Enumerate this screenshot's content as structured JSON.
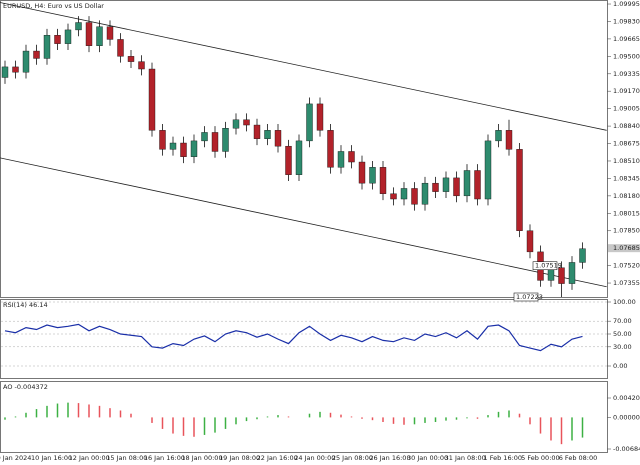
{
  "chart_data": {
    "type": "candlestick",
    "title": "EURUSD, H4:  Euro vs US Dollar",
    "up_color": "#2e8b6e",
    "down_color": "#b2222a",
    "wick_color": "#111",
    "ylim": [
      1.07223,
      1.10033
    ],
    "yticks": [
      1.09995,
      {
        "value": 1.0983,
        "label": "1.09830"
      },
      1.09665,
      {
        "value": 1.095,
        "label": "1.09500"
      },
      1.09335,
      {
        "value": 1.0917,
        "label": "1.09170"
      },
      1.09005,
      {
        "value": 1.0884,
        "label": "1.08840"
      },
      1.08675,
      {
        "value": 1.0851,
        "label": "1.08510"
      },
      1.08345,
      {
        "value": 1.0818,
        "label": "1.08180"
      },
      1.08015,
      {
        "value": 1.0785,
        "label": "1.07850"
      },
      {
        "value": 1.0752,
        "label": "1.07520"
      },
      1.07355
    ],
    "current_price": 1.07685,
    "price_labels": [
      1.07519,
      1.07223
    ],
    "x_labels": [
      "9 Jan 2024",
      "10 Jan 16:00",
      "12 Jan 00:00",
      "15 Jan 08:00",
      "16 Jan 16:00",
      "18 Jan 00:00",
      "19 Jan 08:00",
      "22 Jan 16:00",
      "24 Jan 00:00",
      "25 Jan 08:00",
      "26 Jan 16:00",
      "30 Jan 00:00",
      "31 Jan 08:00",
      "1 Feb 16:00",
      "5 Feb 00:00",
      "6 Feb 08:00"
    ],
    "candles": [
      [
        1.093,
        1.0946,
        1.0924,
        1.094
      ],
      [
        1.094,
        1.0946,
        1.0929,
        1.0935
      ],
      [
        1.0935,
        1.0961,
        1.0929,
        1.0955
      ],
      [
        1.0955,
        1.0961,
        1.0942,
        1.0948
      ],
      [
        1.0948,
        1.0976,
        1.0942,
        1.097
      ],
      [
        1.097,
        1.0976,
        1.0956,
        1.0962
      ],
      [
        1.0962,
        1.0981,
        1.0956,
        1.0975
      ],
      [
        1.0975,
        1.0988,
        1.0969,
        1.0982
      ],
      [
        1.0982,
        1.0988,
        1.0954,
        1.096
      ],
      [
        1.096,
        1.0984,
        1.0954,
        1.0978
      ],
      [
        1.0978,
        1.0984,
        1.096,
        1.0966
      ],
      [
        1.0966,
        1.0972,
        1.0944,
        1.095
      ],
      [
        1.095,
        1.0956,
        1.0939,
        1.0945
      ],
      [
        1.0945,
        1.0951,
        1.0932,
        1.0938
      ],
      [
        1.0938,
        1.0944,
        1.0874,
        1.088
      ],
      [
        1.088,
        1.0886,
        1.0856,
        1.0862
      ],
      [
        1.0862,
        1.0874,
        1.0856,
        1.0868
      ],
      [
        1.0868,
        1.0874,
        1.0849,
        1.0855
      ],
      [
        1.0855,
        1.0876,
        1.0849,
        1.087
      ],
      [
        1.087,
        1.0884,
        1.0864,
        1.0878
      ],
      [
        1.0878,
        1.0884,
        1.0854,
        1.086
      ],
      [
        1.086,
        1.0888,
        1.0854,
        1.0882
      ],
      [
        1.0882,
        1.0896,
        1.0876,
        1.089
      ],
      [
        1.089,
        1.0896,
        1.0879,
        1.0885
      ],
      [
        1.0885,
        1.0891,
        1.0866,
        1.0872
      ],
      [
        1.0872,
        1.0886,
        1.0866,
        1.088
      ],
      [
        1.088,
        1.0886,
        1.0859,
        1.0865
      ],
      [
        1.0865,
        1.0871,
        1.0832,
        1.0838
      ],
      [
        1.0838,
        1.0876,
        1.0832,
        1.087
      ],
      [
        1.087,
        1.0911,
        1.0864,
        1.0905
      ],
      [
        1.0905,
        1.0911,
        1.0874,
        1.088
      ],
      [
        1.088,
        1.0886,
        1.0839,
        1.0845
      ],
      [
        1.0845,
        1.0866,
        1.0839,
        1.086
      ],
      [
        1.086,
        1.0866,
        1.0844,
        1.085
      ],
      [
        1.085,
        1.0856,
        1.0824,
        1.083
      ],
      [
        1.083,
        1.0851,
        1.0824,
        1.0845
      ],
      [
        1.0845,
        1.0851,
        1.0814,
        1.082
      ],
      [
        1.082,
        1.0826,
        1.0809,
        1.0815
      ],
      [
        1.0815,
        1.0831,
        1.0809,
        1.0825
      ],
      [
        1.0825,
        1.0831,
        1.0804,
        1.081
      ],
      [
        1.081,
        1.0836,
        1.0804,
        1.083
      ],
      [
        1.083,
        1.0836,
        1.0816,
        1.0822
      ],
      [
        1.0822,
        1.0841,
        1.0816,
        1.0835
      ],
      [
        1.0835,
        1.0841,
        1.0812,
        1.0818
      ],
      [
        1.0818,
        1.0848,
        1.0812,
        1.0842
      ],
      [
        1.0842,
        1.0848,
        1.0809,
        1.0815
      ],
      [
        1.0815,
        1.0876,
        1.0809,
        1.087
      ],
      [
        1.087,
        1.0886,
        1.0864,
        1.088
      ],
      [
        1.088,
        1.089,
        1.0856,
        1.0862
      ],
      [
        1.0862,
        1.0868,
        1.0779,
        1.0785
      ],
      [
        1.0785,
        1.0791,
        1.0759,
        1.0765
      ],
      [
        1.0765,
        1.0771,
        1.0732,
        1.0738
      ],
      [
        1.0738,
        1.0756,
        1.0732,
        1.075
      ],
      [
        1.075,
        1.0756,
        1.07223,
        1.0735
      ],
      [
        1.0735,
        1.0761,
        1.0729,
        1.0755
      ],
      [
        1.0755,
        1.0774,
        1.0749,
        1.0768
      ]
    ],
    "trendlines": [
      {
        "x": [
          -0.5,
          57.3
        ],
        "y": [
          1.1001,
          1.088
        ]
      },
      {
        "x": [
          -0.5,
          57.3
        ],
        "y": [
          1.0854,
          1.0732
        ]
      }
    ],
    "rsi": {
      "title": "RSI(14) 46.14",
      "color": "#1a2fa8",
      "ylim": [
        0,
        100
      ],
      "yticks": [
        {
          "value": 100,
          "label": "100.00"
        },
        {
          "value": 70,
          "label": "70.00"
        },
        {
          "value": 50,
          "label": "50.00"
        },
        {
          "value": 30,
          "label": "30.00"
        },
        {
          "value": 0,
          "label": "0.00"
        }
      ],
      "values": [
        55,
        52,
        60,
        57,
        64,
        60,
        62,
        65,
        55,
        62,
        57,
        50,
        48,
        46,
        30,
        28,
        35,
        32,
        42,
        47,
        38,
        50,
        55,
        52,
        45,
        50,
        42,
        35,
        52,
        62,
        50,
        40,
        48,
        44,
        38,
        46,
        40,
        38,
        44,
        40,
        50,
        46,
        52,
        44,
        55,
        42,
        62,
        64,
        55,
        32,
        28,
        24,
        34,
        30,
        42,
        46.14
      ]
    },
    "ao": {
      "title": "AO -0.004372",
      "up_color": "#3cb043",
      "down_color": "#e8535a",
      "ylim": [
        -0.006848,
        0.004202
      ],
      "yticks": [
        0.004202,
        {
          "value": 0,
          "label": "0.000000"
        },
        -0.006848
      ],
      "values": [
        -0.0005,
        0.0002,
        0.001,
        0.0018,
        0.0025,
        0.003,
        0.0032,
        0.0031,
        0.0028,
        0.0025,
        0.002,
        0.0015,
        0.0008,
        0,
        -0.0012,
        -0.0025,
        -0.0035,
        -0.004,
        -0.0042,
        -0.0038,
        -0.0033,
        -0.0025,
        -0.0015,
        -0.0008,
        -0.0004,
        0.0002,
        0.0005,
        0.0002,
        0,
        0.0008,
        0.0012,
        0.001,
        0.0006,
        0.0002,
        -0.0003,
        -0.0006,
        -0.001,
        -0.0014,
        -0.0016,
        -0.0015,
        -0.0012,
        -0.001,
        -0.0007,
        -0.0005,
        -0.0002,
        -0.0003,
        0.0005,
        0.0012,
        0.0015,
        0.0008,
        -0.0015,
        -0.0035,
        -0.005,
        -0.0058,
        -0.005,
        -0.004372
      ]
    }
  }
}
